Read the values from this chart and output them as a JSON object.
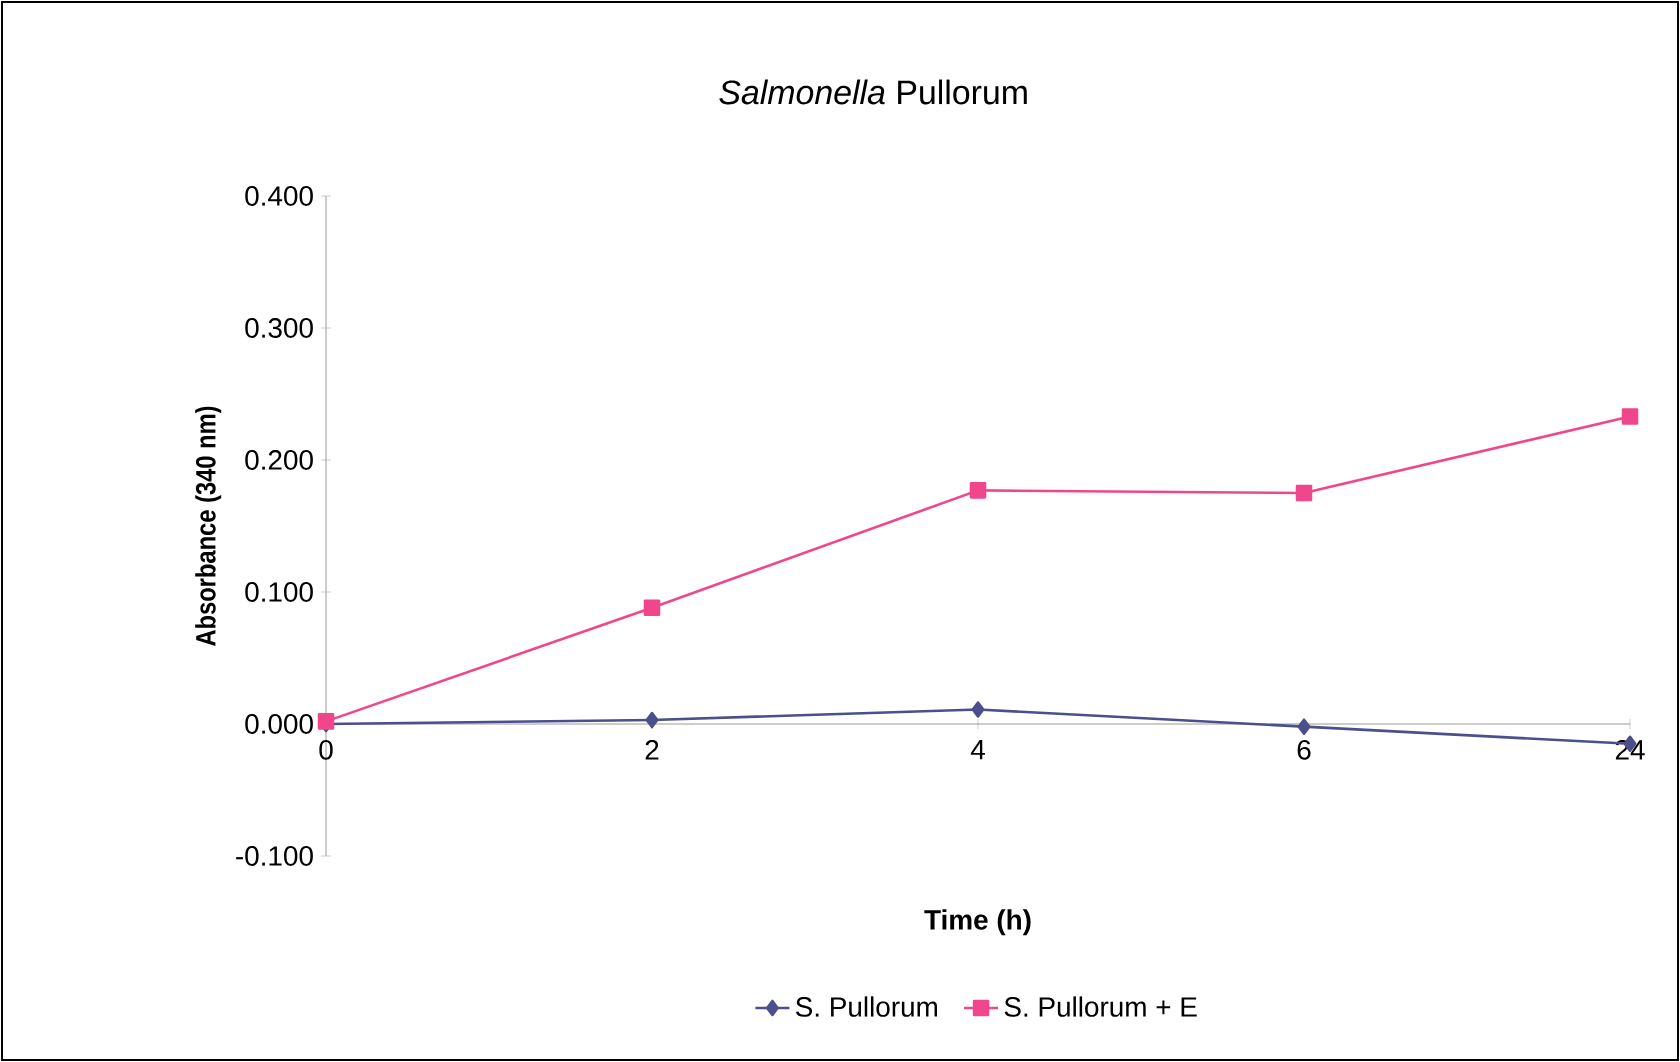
{
  "chart_data": {
    "type": "line",
    "title": "*Salmonella* Pullorum",
    "xlabel": "Time (h)",
    "ylabel": "Absorbance (340 nm)",
    "categories": [
      "0",
      "2",
      "4",
      "6",
      "24"
    ],
    "series": [
      {
        "name": "S. Pullorum",
        "color": "#4b4f8c",
        "marker": "diamond",
        "values": [
          0.0,
          0.003,
          0.011,
          -0.002,
          -0.015
        ]
      },
      {
        "name": "S. Pullorum + E",
        "color": "#f0468c",
        "marker": "square",
        "values": [
          0.002,
          0.088,
          0.177,
          0.175,
          0.233
        ]
      }
    ],
    "ylim": [
      -0.1,
      0.4
    ],
    "yticks": [
      {
        "value": -0.1,
        "label": "-0.100"
      },
      {
        "value": 0,
        "label": "0.000"
      },
      {
        "value": 0.1,
        "label": "0.100"
      },
      {
        "value": 0.2,
        "label": "0.200"
      },
      {
        "value": 0.3,
        "label": "0.300"
      },
      {
        "value": 0.4,
        "label": "0.400"
      }
    ],
    "legend": "bottom",
    "grid": false,
    "line_style": "solid"
  }
}
